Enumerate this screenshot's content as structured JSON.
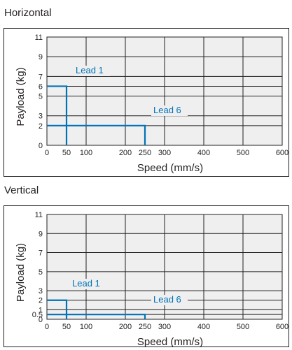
{
  "sections": [
    {
      "title": "Horizontal"
    },
    {
      "title": "Vertical"
    }
  ],
  "colors": {
    "line": "#0073b7",
    "grid": "#231f20",
    "plot_background": "#efefef",
    "text": "#231f20"
  },
  "chart_data": [
    {
      "type": "line",
      "title": "Horizontal",
      "xlabel": "Speed (mm/s)",
      "ylabel": "Payload (kg)",
      "xlim": [
        0,
        600
      ],
      "ylim": [
        0,
        11
      ],
      "x_ticks": [
        0,
        50,
        100,
        200,
        250,
        300,
        400,
        500,
        600
      ],
      "y_ticks": [
        0,
        2,
        3,
        5,
        6,
        7,
        9,
        11
      ],
      "grid": true,
      "series": [
        {
          "name": "Lead 1",
          "x": [
            0,
            50,
            50
          ],
          "y": [
            6,
            6,
            0
          ]
        },
        {
          "name": "Lead 6",
          "x": [
            0,
            250,
            250
          ],
          "y": [
            2,
            2,
            0
          ]
        }
      ]
    },
    {
      "type": "line",
      "title": "Vertical",
      "xlabel": "Speed (mm/s)",
      "ylabel": "Payload (kg)",
      "xlim": [
        0,
        600
      ],
      "ylim": [
        0,
        11
      ],
      "x_ticks": [
        0,
        50,
        100,
        200,
        250,
        300,
        400,
        500,
        600
      ],
      "y_ticks": [
        0,
        0.5,
        1,
        2,
        3,
        5,
        7,
        9,
        11
      ],
      "grid": true,
      "series": [
        {
          "name": "Lead 1",
          "x": [
            0,
            50,
            50
          ],
          "y": [
            2,
            2,
            0
          ]
        },
        {
          "name": "Lead 6",
          "x": [
            0,
            250,
            250
          ],
          "y": [
            0.5,
            0.5,
            0
          ]
        }
      ]
    }
  ]
}
